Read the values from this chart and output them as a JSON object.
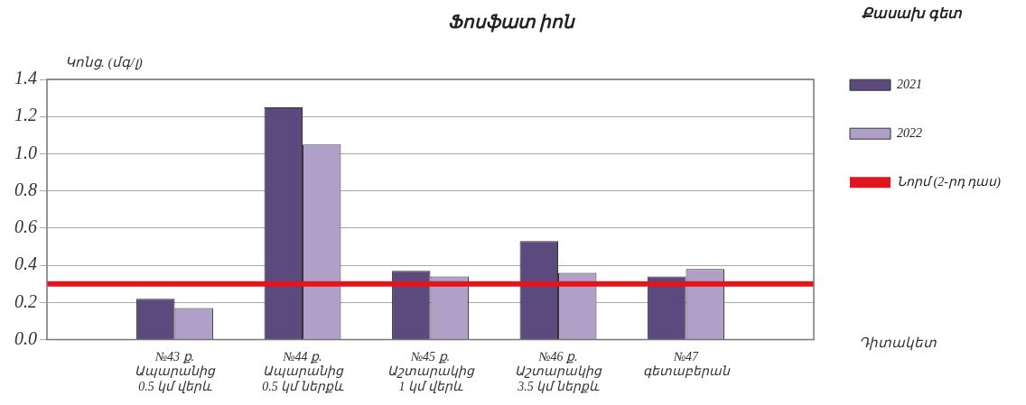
{
  "chart_data": {
    "type": "bar",
    "title": "Ֆոսֆատ իոն",
    "ylabel": "Կոնց. (մգ/լ)",
    "xlabel": "Դիտակետ",
    "legend_title": "Քասախ գետ",
    "categories": [
      null,
      "№43 ք. Ապարանից 0.5 կմ վերև",
      "№44 ք. Ապարանից 0.5 կմ ներքև",
      "№45 ք. Աշտարակից 1 կմ վերև",
      "№46 ք. Աշտարակից 3.5 կմ ներքև",
      "№47 գետաբերան",
      null
    ],
    "series": [
      {
        "name": "2021",
        "color": "#5c4a7e",
        "values": [
          null,
          0.22,
          1.25,
          0.37,
          0.53,
          0.34,
          null
        ]
      },
      {
        "name": "2022",
        "color": "#b0a0c8",
        "values": [
          null,
          0.17,
          1.05,
          0.34,
          0.36,
          0.38,
          null
        ]
      }
    ],
    "ref_lines": [
      {
        "axis": "y",
        "value": 0.3,
        "label": "Նորմ (2-րդ դաս)",
        "color": "#e0161e"
      }
    ],
    "ylim": [
      0,
      1.4
    ],
    "yticks": [
      {
        "value": 0,
        "label": "0.0"
      },
      0.2,
      0.4,
      0.6,
      0.8,
      {
        "value": 1,
        "label": "1.0"
      },
      1.2,
      1.4
    ],
    "grid": "y",
    "legend": "right"
  }
}
